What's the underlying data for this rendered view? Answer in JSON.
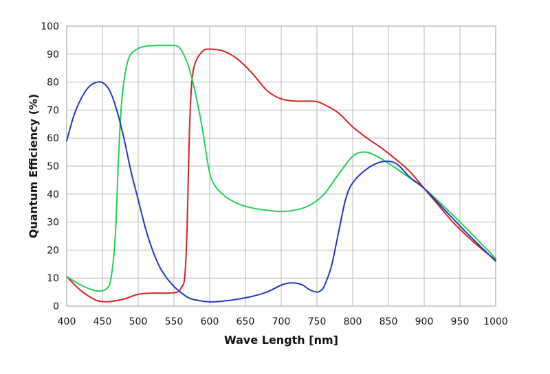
{
  "chart_data": {
    "type": "line",
    "title": "",
    "xlabel": "Wave Length [nm]",
    "ylabel": "Quantum Efficiency (%)",
    "xlim": [
      400,
      1000
    ],
    "ylim": [
      0,
      100
    ],
    "x_ticks": [
      400,
      450,
      500,
      550,
      600,
      650,
      700,
      750,
      800,
      850,
      900,
      950,
      1000
    ],
    "y_ticks": [
      0,
      10,
      20,
      30,
      40,
      50,
      60,
      70,
      80,
      90,
      100
    ],
    "grid": true,
    "legend": "none",
    "series": [
      {
        "color": "#d42020",
        "x": [
          400,
          420,
          440,
          450,
          460,
          480,
          500,
          520,
          540,
          555,
          560,
          565,
          568,
          570,
          572,
          575,
          580,
          590,
          600,
          620,
          640,
          660,
          680,
          700,
          720,
          740,
          750,
          760,
          780,
          800,
          820,
          840,
          860,
          880,
          900,
          920,
          940,
          960,
          980,
          1000
        ],
        "y": [
          10.5,
          5.5,
          2.2,
          1.6,
          1.6,
          2.5,
          4.2,
          4.6,
          4.6,
          5.0,
          6.5,
          10,
          25,
          45,
          65,
          80,
          87,
          91,
          91.8,
          91,
          88,
          83,
          77,
          74,
          73.2,
          73.2,
          73.0,
          72,
          69,
          64,
          60,
          56.5,
          52.5,
          48,
          42,
          36,
          30,
          25,
          20.5,
          16.5
        ]
      },
      {
        "color": "#20d050",
        "x": [
          400,
          420,
          440,
          455,
          462,
          468,
          472,
          476,
          480,
          485,
          490,
          500,
          510,
          520,
          530,
          540,
          550,
          555,
          560,
          570,
          580,
          590,
          598,
          605,
          620,
          640,
          660,
          680,
          700,
          720,
          740,
          760,
          780,
          800,
          815,
          830,
          850,
          870,
          900,
          930,
          960,
          1000
        ],
        "y": [
          10.5,
          7.5,
          5.5,
          6,
          10,
          25,
          50,
          70,
          80,
          87,
          90,
          92,
          92.8,
          93,
          93.1,
          93.1,
          93.1,
          92.8,
          91.5,
          86,
          76,
          63,
          50,
          44,
          39.5,
          36.5,
          35,
          34.2,
          33.8,
          34.3,
          36,
          40,
          47,
          53.5,
          55,
          54,
          51,
          47.5,
          42,
          35,
          27.5,
          17
        ]
      },
      {
        "color": "#2035c8",
        "x": [
          400,
          410,
          420,
          430,
          440,
          450,
          460,
          470,
          480,
          490,
          500,
          510,
          520,
          530,
          540,
          550,
          560,
          570,
          580,
          600,
          620,
          640,
          660,
          680,
          700,
          710,
          720,
          730,
          740,
          750,
          755,
          760,
          770,
          780,
          790,
          800,
          820,
          840,
          860,
          880,
          900,
          930,
          960,
          1000
        ],
        "y": [
          59,
          68,
          74,
          78,
          79.8,
          79.8,
          77,
          70,
          60,
          48,
          38,
          28,
          20,
          14,
          10,
          7,
          4.8,
          3,
          2.2,
          1.5,
          1.8,
          2.5,
          3.5,
          5,
          7.5,
          8.2,
          8.2,
          7.5,
          5.8,
          5.0,
          5.5,
          7,
          14,
          26,
          38,
          44,
          49,
          51.5,
          51,
          46,
          42,
          34,
          26,
          16
        ]
      }
    ]
  }
}
